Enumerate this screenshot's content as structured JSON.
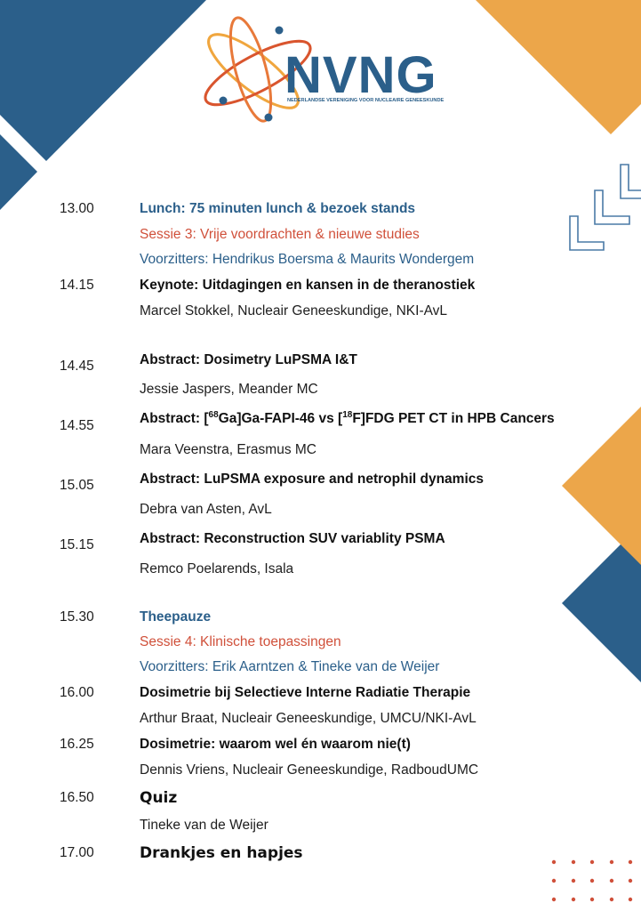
{
  "colors": {
    "blue": "#2b5f8a",
    "orange": "#eca64a",
    "red": "#d0503a"
  },
  "logo": {
    "name": "NVNG",
    "subtitle": "NEDERLANDSE VERENIGING VOOR NUCLEAIRE GENEESKUNDE"
  },
  "program": [
    {
      "time": "13.00",
      "title": "Lunch: 75 minuten lunch & bezoek stands",
      "session": "Sessie 3: Vrije voordrachten & nieuwe studies",
      "chairs": "Voorzitters: Hendrikus Boersma & Maurits Wondergem"
    },
    {
      "time": "14.15",
      "title": "Keynote: Uitdagingen en kansen in de theranostiek",
      "speaker": "Marcel Stokkel, Nucleair Geneeskundige, NKI-AvL"
    },
    {
      "time": "14.45",
      "title": "Abstract: Dosimetry LuPSMA I&T",
      "speaker": "Jessie Jaspers, Meander MC"
    },
    {
      "time": "14.55",
      "title_parts": [
        "Abstract: [",
        "68",
        "Ga]Ga-FAPI-46 vs [",
        "18",
        "F]FDG PET CT in HPB Cancers"
      ],
      "speaker": "Mara Veenstra, Erasmus MC"
    },
    {
      "time": "15.05",
      "title": "Abstract: LuPSMA exposure and netrophil dynamics",
      "speaker": "Debra van Asten, AvL"
    },
    {
      "time": "15.15",
      "title": "Abstract: Reconstruction SUV variablity PSMA",
      "speaker": "Remco Poelarends, Isala"
    },
    {
      "time": "15.30",
      "title": "Theepauze",
      "session": "Sessie 4: Klinische toepassingen",
      "chairs": "Voorzitters: Erik Aarntzen & Tineke van de Weijer"
    },
    {
      "time": "16.00",
      "title": "Dosimetrie bij Selectieve Interne Radiatie Therapie",
      "speaker": "Arthur Braat, Nucleair Geneeskundige, UMCU/NKI-AvL"
    },
    {
      "time": "16.25",
      "title": "Dosimetrie: waarom wel én waarom nie(t)",
      "speaker": "Dennis Vriens, Nucleair Geneeskundige, RadboudUMC"
    },
    {
      "time": "16.50",
      "title": "Quiz",
      "speaker": "Tineke van de Weijer"
    },
    {
      "time": "17.00",
      "title": "Drankjes en hapjes"
    }
  ]
}
